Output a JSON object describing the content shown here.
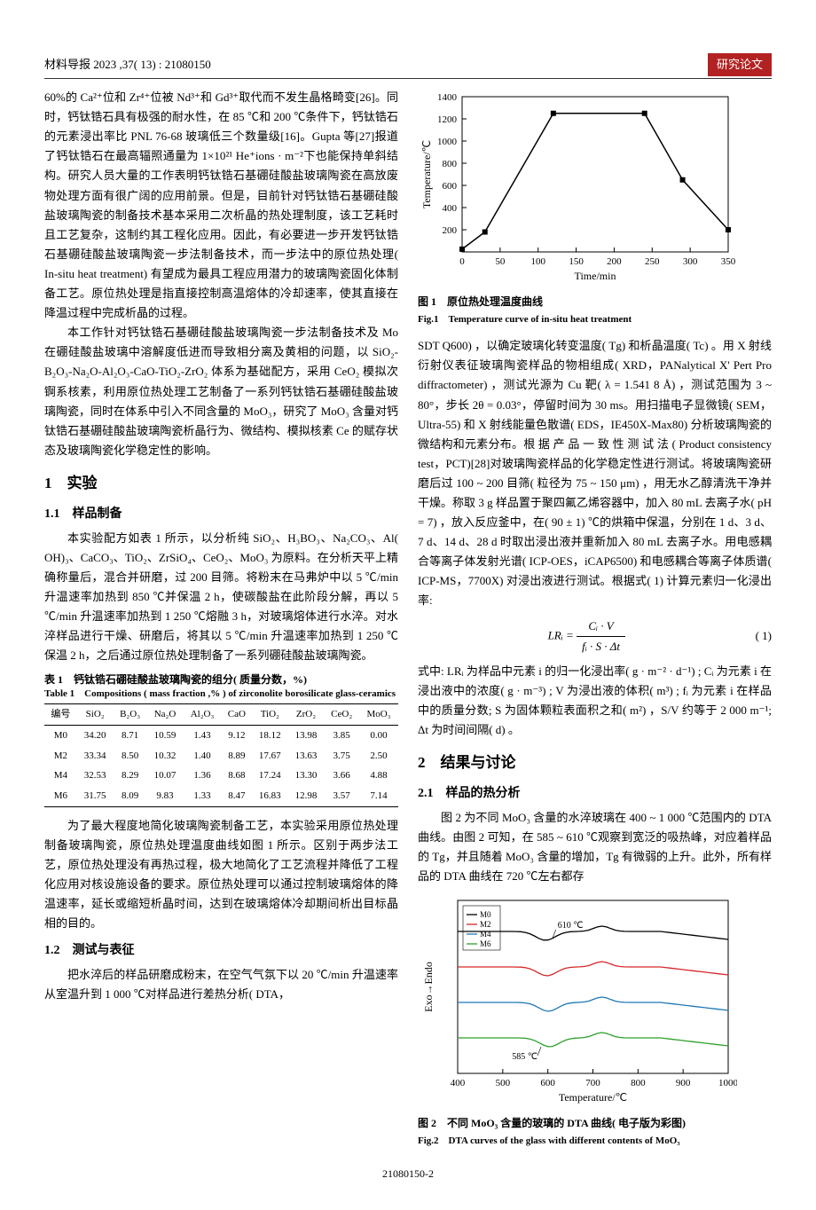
{
  "header": {
    "left": "材料导报 2023 ,37( 13) : 21080150",
    "right": "研究论文"
  },
  "left_intro_paragraphs": [
    "60%的 Ca²⁺位和 Zr⁴⁺位被 Nd³⁺和 Gd³⁺取代而不发生晶格畸变[26]。同时，钙钛锆石具有极强的耐水性，在 85 ℃和 200 ℃条件下，钙钛锆石的元素浸出率比 PNL 76-68 玻璃低三个数量级[16]。Gupta 等[27]报道了钙钛锆石在最高辐照通量为 1×10²¹ He⁺ions · m⁻²下也能保持单斜结构。研究人员大量的工作表明钙钛锆石基硼硅酸盐玻璃陶瓷在高放废物处理方面有很广阔的应用前景。但是，目前针对钙钛锆石基硼硅酸盐玻璃陶瓷的制备技术基本采用二次析晶的热处理制度，该工艺耗时且工艺复杂，这制约其工程化应用。因此，有必要进一步开发钙钛锆石基硼硅酸盐玻璃陶瓷一步法制备技术，而一步法中的原位热处理( In-situ heat treatment) 有望成为最具工程应用潜力的玻璃陶瓷固化体制备工艺。原位热处理是指直接控制高温熔体的冷却速率，使其直接在降温过程中完成析晶的过程。",
    "本工作针对钙钛锆石基硼硅酸盐玻璃陶瓷一步法制备技术及 Mo 在硼硅酸盐玻璃中溶解度低进而导致相分离及黄相的问题，以 SiO₂-B₂O₃-Na₂O-Al₂O₃-CaO-TiO₂-ZrO₂ 体系为基础配方，采用 CeO₂ 模拟次锕系核素，利用原位热处理工艺制备了一系列钙钛锆石基硼硅酸盐玻璃陶瓷，同时在体系中引入不同含量的 MoO₃，研究了 MoO₃ 含量对钙钛锆石基硼硅酸盐玻璃陶瓷析晶行为、微结构、模拟核素 Ce 的赋存状态及玻璃陶瓷化学稳定性的影响。"
  ],
  "sec1": {
    "title": "1　实验",
    "sub11": {
      "title": "1.1　样品制备",
      "paragraphs": [
        "本实验配方如表 1 所示，以分析纯 SiO₂、H₃BO₃、Na₂CO₃、Al( OH)₃、CaCO₃、TiO₂、ZrSiO₄、CeO₂、MoO₃ 为原料。在分析天平上精确称量后，混合并研磨，过 200 目筛。将粉末在马弗炉中以 5 ℃/min 升温速率加热到 850 ℃并保温 2 h，使碳酸盐在此阶段分解，再以 5 ℃/min 升温速率加热到 1 250 ℃熔融 3 h，对玻璃熔体进行水淬。对水淬样品进行干燥、研磨后，将其以 5 ℃/min 升温速率加热到 1 250 ℃保温 2 h，之后通过原位热处理制备了一系列硼硅酸盐玻璃陶瓷。"
      ]
    },
    "table1": {
      "title_cn": "表 1　钙钛锆石硼硅酸盐玻璃陶瓷的组分( 质量分数，%)",
      "title_en": "Table 1　Compositions ( mass fraction ,% ) of zirconolite borosilicate glass-ceramics",
      "columns": [
        "编号",
        "SiO₂",
        "B₂O₃",
        "Na₂O",
        "Al₂O₃",
        "CaO",
        "TiO₂",
        "ZrO₂",
        "CeO₂",
        "MoO₃"
      ],
      "rows": [
        [
          "M0",
          "34.20",
          "8.71",
          "10.59",
          "1.43",
          "9.12",
          "18.12",
          "13.98",
          "3.85",
          "0.00"
        ],
        [
          "M2",
          "33.34",
          "8.50",
          "10.32",
          "1.40",
          "8.89",
          "17.67",
          "13.63",
          "3.75",
          "2.50"
        ],
        [
          "M4",
          "32.53",
          "8.29",
          "10.07",
          "1.36",
          "8.68",
          "17.24",
          "13.30",
          "3.66",
          "4.88"
        ],
        [
          "M6",
          "31.75",
          "8.09",
          "9.83",
          "1.33",
          "8.47",
          "16.83",
          "12.98",
          "3.57",
          "7.14"
        ]
      ]
    },
    "after_table_p": "为了最大程度地简化玻璃陶瓷制备工艺，本实验采用原位热处理制备玻璃陶瓷，原位热处理温度曲线如图 1 所示。区别于两步法工艺，原位热处理没有再热过程，极大地简化了工艺流程并降低了工程化应用对核设施设备的要求。原位热处理可以通过控制玻璃熔体的降温速率，延长或缩短析晶时间，达到在玻璃熔体冷却期间析出目标晶相的目的。",
    "sub12": {
      "title": "1.2　测试与表征",
      "paragraphs": [
        "把水淬后的样品研磨成粉末，在空气气氛下以 20 ℃/min 升温速率从室温升到 1 000 ℃对样品进行差热分析( DTA，"
      ]
    }
  },
  "fig1": {
    "caption_cn": "图 1　原位热处理温度曲线",
    "caption_en": "Fig.1　Temperature curve of in-situ heat treatment",
    "xlabel": "Time/min",
    "ylabel": "Temperature/℃",
    "xlim": [
      0,
      350
    ],
    "ylim": [
      0,
      1400
    ],
    "xtick_step": 50,
    "ytick_step": 200,
    "line_color": "#000000",
    "background": "#ffffff",
    "grid": false,
    "points": [
      [
        0,
        25
      ],
      [
        30,
        180
      ],
      [
        120,
        1250
      ],
      [
        240,
        1250
      ],
      [
        290,
        650
      ],
      [
        350,
        200
      ]
    ]
  },
  "right_column_paragraphs": [
    "SDT Q600) ，以确定玻璃化转变温度( Tg) 和析晶温度( Tc) 。用 X 射线衍射仪表征玻璃陶瓷样品的物相组成( XRD，PANalytical X' Pert Pro diffractometer) ，测试光源为 Cu 靶( λ = 1.541 8 Å) ，测试范围为 3 ~ 80°，步长 2θ = 0.03°，停留时间为 30 ms。用扫描电子显微镜( SEM，Ultra-55) 和 X 射线能量色散谱( EDS，IE450X-Max80) 分析玻璃陶瓷的微结构和元素分布。根 据 产 品 一 致 性 测 试 法 ( Product consistency test，PCT)[28]对玻璃陶瓷样品的化学稳定性进行测试。将玻璃陶瓷研磨后过 100 ~ 200 目筛( 粒径为 75 ~ 150 μm) ，用无水乙醇清洗干净并干燥。称取 3 g 样品置于聚四氟乙烯容器中，加入 80 mL 去离子水( pH = 7) ，放入反应釜中，在( 90 ± 1) ℃的烘箱中保温，分别在 1 d、3 d、7 d、14 d、28 d 时取出浸出液并重新加入 80 mL 去离子水。用电感耦合等离子体发射光谱( ICP-OES，iCAP6500) 和电感耦合等离子体质谱( ICP-MS，7700X) 对浸出液进行测试。根据式( 1) 计算元素归一化浸出率:"
  ],
  "eq1": {
    "num": "Cᵢ · V",
    "den": "fᵢ · S · Δt",
    "lhs": "LRᵢ = ",
    "label": "( 1)"
  },
  "eq1_note": "式中: LRᵢ 为样品中元素 i 的归一化浸出率( g · m⁻² · d⁻¹) ; Cᵢ 为元素 i 在浸出液中的浓度( g · m⁻³) ; V 为浸出液的体积( m³) ; fᵢ 为元素 i 在样品中的质量分数; S 为固体颗粒表面积之和( m²) ，S/V 约等于 2 000 m⁻¹; Δt 为时间间隔( d) 。",
  "sec2": {
    "title": "2　结果与讨论",
    "sub21": {
      "title": "2.1　样品的热分析",
      "paragraphs": [
        "图 2 为不同 MoO₃ 含量的水淬玻璃在 400 ~ 1 000 ℃范围内的 DTA 曲线。由图 2 可知，在 585 ~ 610 ℃观察到宽泛的吸热峰，对应着样品的 Tg，并且随着 MoO₃ 含量的增加，Tg 有微弱的上升。此外，所有样品的 DTA 曲线在 720 ℃左右都存"
      ]
    }
  },
  "fig2": {
    "caption_cn": "图 2　不同 MoO₃ 含量的玻璃的 DTA 曲线( 电子版为彩图)",
    "caption_en": "Fig.2　DTA curves of the glass with different contents of MoO₃",
    "xlabel": "Temperature/℃",
    "ylabel": "Exo→Endo",
    "xlim": [
      400,
      1000
    ],
    "xtick_step": 100,
    "series": [
      {
        "name": "M0",
        "color": "#000000"
      },
      {
        "name": "M2",
        "color": "#d62728"
      },
      {
        "name": "M4",
        "color": "#1f77b4"
      },
      {
        "name": "M6",
        "color": "#2ca02c"
      }
    ],
    "annotations": [
      {
        "x": 610,
        "label": "610 ℃"
      },
      {
        "x": 585,
        "label": "585 ℃"
      }
    ],
    "background": "#ffffff"
  },
  "page_number": "21080150-2"
}
